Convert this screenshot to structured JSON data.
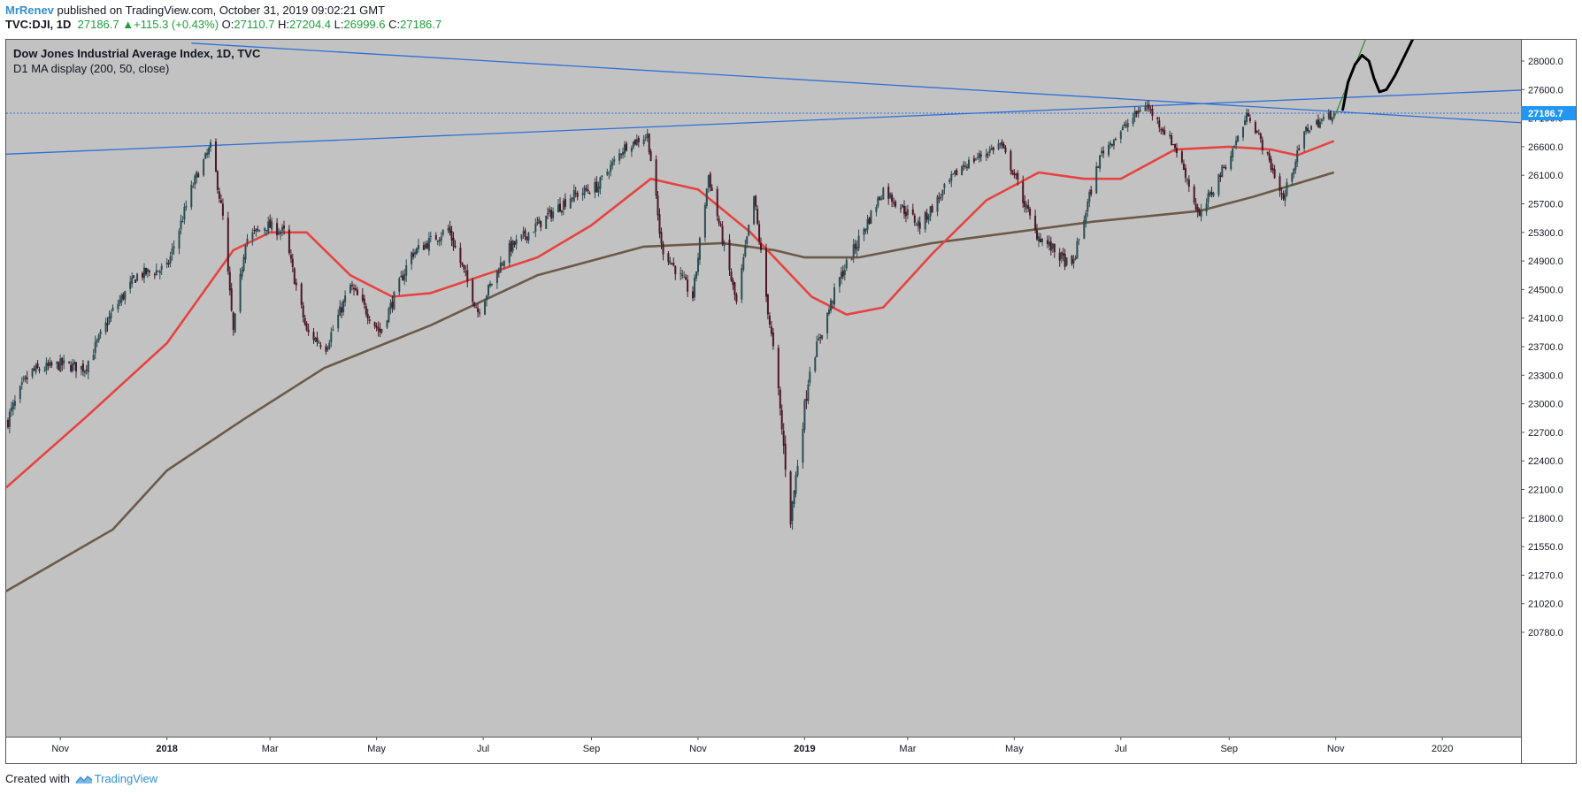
{
  "header": {
    "author": "MrRenev",
    "published_text": "published on TradingView.com, October 31, 2019 09:02:21 GMT",
    "symbol": "TVC:DJI, 1D",
    "last": "27186.7",
    "change_arrow": "▲",
    "change": "+115.3 (+0.43%)",
    "open_label": "O:",
    "open": "27110.7",
    "high_label": "H:",
    "high": "27204.4",
    "low_label": "L:",
    "low": "26999.6",
    "close_label": "C:",
    "close": "27186.7"
  },
  "footer": {
    "created_with": "Created with",
    "brand": "TradingView"
  },
  "colors": {
    "plot_background": "#c2c2c2",
    "candle_up": "#2b4d52",
    "candle_down": "#4a1625",
    "ma50": "#e64340",
    "ma200": "#6b5a48",
    "trendline": "#2f6fd8",
    "price_label_bg": "#2196f3",
    "projection_green": "#3a8a3a",
    "drawing_black": "#000000"
  },
  "chart_data": {
    "type": "candlestick",
    "title": "Dow Jones Industrial Average Index, 1D, TVC",
    "subtitle": "D1 MA display (200, 50, close)",
    "last_price_label": "27186.7",
    "y_ticks": [
      28000.0,
      27600.0,
      27100.0,
      26600.0,
      26100.0,
      25700.0,
      25300.0,
      24900.0,
      24500.0,
      24100.0,
      23700.0,
      23300.0,
      23000.0,
      22700.0,
      22400.0,
      22100.0,
      21800.0,
      21550.0,
      21270.0,
      21020.0,
      20780.0
    ],
    "y_tick_labels": [
      "28000.0",
      "27600.0",
      "27100.0",
      "26600.0",
      "26100.0",
      "25700.0",
      "25300.0",
      "24900.0",
      "24500.0",
      "24100.0",
      "23700.0",
      "23300.0",
      "23000.0",
      "22700.0",
      "22400.0",
      "22100.0",
      "21800.0",
      "21550.0",
      "21270.0",
      "21020.0",
      "20780.0"
    ],
    "x_ticks": [
      {
        "date": "2017-11-01",
        "label": "Nov",
        "bold": false
      },
      {
        "date": "2018-01-01",
        "label": "2018",
        "bold": true
      },
      {
        "date": "2018-03-01",
        "label": "Mar",
        "bold": false
      },
      {
        "date": "2018-05-01",
        "label": "May",
        "bold": false
      },
      {
        "date": "2018-07-01",
        "label": "Jul",
        "bold": false
      },
      {
        "date": "2018-09-01",
        "label": "Sep",
        "bold": false
      },
      {
        "date": "2018-11-01",
        "label": "Nov",
        "bold": false
      },
      {
        "date": "2019-01-01",
        "label": "2019",
        "bold": true
      },
      {
        "date": "2019-03-01",
        "label": "Mar",
        "bold": false
      },
      {
        "date": "2019-05-01",
        "label": "May",
        "bold": false
      },
      {
        "date": "2019-07-01",
        "label": "Jul",
        "bold": false
      },
      {
        "date": "2019-09-01",
        "label": "Sep",
        "bold": false
      },
      {
        "date": "2019-11-01",
        "label": "Nov",
        "bold": false
      },
      {
        "date": "2020-01-01",
        "label": "2020",
        "bold": false
      }
    ],
    "x_range": [
      "2017-10-01",
      "2020-02-15"
    ],
    "price_path": [
      [
        "2017-10-01",
        22800
      ],
      [
        "2017-10-15",
        23350
      ],
      [
        "2017-11-01",
        23450
      ],
      [
        "2017-11-15",
        23400
      ],
      [
        "2017-12-01",
        24200
      ],
      [
        "2017-12-15",
        24700
      ],
      [
        "2018-01-01",
        24800
      ],
      [
        "2018-01-15",
        25900
      ],
      [
        "2018-01-26",
        26600
      ],
      [
        "2018-02-02",
        25500
      ],
      [
        "2018-02-08",
        23900
      ],
      [
        "2018-02-15",
        25200
      ],
      [
        "2018-02-27",
        25400
      ],
      [
        "2018-03-09",
        25300
      ],
      [
        "2018-03-22",
        23900
      ],
      [
        "2018-04-02",
        23700
      ],
      [
        "2018-04-16",
        24550
      ],
      [
        "2018-05-03",
        23900
      ],
      [
        "2018-05-21",
        25000
      ],
      [
        "2018-06-11",
        25350
      ],
      [
        "2018-06-28",
        24200
      ],
      [
        "2018-07-15",
        25050
      ],
      [
        "2018-08-01",
        25400
      ],
      [
        "2018-08-20",
        25800
      ],
      [
        "2018-09-05",
        25950
      ],
      [
        "2018-09-20",
        26600
      ],
      [
        "2018-10-03",
        26800
      ],
      [
        "2018-10-11",
        25100
      ],
      [
        "2018-10-29",
        24400
      ],
      [
        "2018-11-07",
        26100
      ],
      [
        "2018-11-23",
        24300
      ],
      [
        "2018-12-03",
        25800
      ],
      [
        "2018-12-10",
        24400
      ],
      [
        "2018-12-24",
        21800
      ],
      [
        "2019-01-04",
        23400
      ],
      [
        "2019-01-20",
        24600
      ],
      [
        "2019-02-15",
        25900
      ],
      [
        "2019-03-08",
        25400
      ],
      [
        "2019-04-01",
        26250
      ],
      [
        "2019-04-23",
        26650
      ],
      [
        "2019-05-13",
        25300
      ],
      [
        "2019-06-03",
        24800
      ],
      [
        "2019-06-20",
        26500
      ],
      [
        "2019-07-15",
        27350
      ],
      [
        "2019-08-01",
        26600
      ],
      [
        "2019-08-15",
        25500
      ],
      [
        "2019-09-01",
        26400
      ],
      [
        "2019-09-12",
        27200
      ],
      [
        "2019-10-02",
        25750
      ],
      [
        "2019-10-15",
        26900
      ],
      [
        "2019-10-31",
        27186.7
      ]
    ],
    "ma50": [
      [
        "2017-10-01",
        22120
      ],
      [
        "2017-11-15",
        22850
      ],
      [
        "2018-01-01",
        23750
      ],
      [
        "2018-02-08",
        25050
      ],
      [
        "2018-03-01",
        25300
      ],
      [
        "2018-03-22",
        25300
      ],
      [
        "2018-04-16",
        24700
      ],
      [
        "2018-05-10",
        24400
      ],
      [
        "2018-06-01",
        24450
      ],
      [
        "2018-07-01",
        24700
      ],
      [
        "2018-08-01",
        24950
      ],
      [
        "2018-09-01",
        25400
      ],
      [
        "2018-10-05",
        26050
      ],
      [
        "2018-11-01",
        25900
      ],
      [
        "2018-12-01",
        25300
      ],
      [
        "2019-01-05",
        24400
      ],
      [
        "2019-01-25",
        24150
      ],
      [
        "2019-02-15",
        24250
      ],
      [
        "2019-03-15",
        25000
      ],
      [
        "2019-04-15",
        25750
      ],
      [
        "2019-05-15",
        26150
      ],
      [
        "2019-06-10",
        26050
      ],
      [
        "2019-07-01",
        26050
      ],
      [
        "2019-08-01",
        26550
      ],
      [
        "2019-09-01",
        26600
      ],
      [
        "2019-09-25",
        26550
      ],
      [
        "2019-10-10",
        26450
      ],
      [
        "2019-10-31",
        26700
      ]
    ],
    "ma200": [
      [
        "2017-10-01",
        21130
      ],
      [
        "2017-12-01",
        21700
      ],
      [
        "2018-01-01",
        22300
      ],
      [
        "2018-02-15",
        22850
      ],
      [
        "2018-04-01",
        23400
      ],
      [
        "2018-06-01",
        24000
      ],
      [
        "2018-08-01",
        24700
      ],
      [
        "2018-10-01",
        25100
      ],
      [
        "2018-11-15",
        25150
      ],
      [
        "2018-12-15",
        25050
      ],
      [
        "2019-01-01",
        24950
      ],
      [
        "2019-02-01",
        24950
      ],
      [
        "2019-03-15",
        25150
      ],
      [
        "2019-04-15",
        25250
      ],
      [
        "2019-06-15",
        25450
      ],
      [
        "2019-08-15",
        25600
      ],
      [
        "2019-09-15",
        25800
      ],
      [
        "2019-10-31",
        26150
      ]
    ],
    "trendlines": [
      {
        "name": "rising resistance",
        "from": [
          "2017-10-01",
          26470
        ],
        "to": [
          "2020-02-15",
          27590
        ]
      },
      {
        "name": "falling resistance",
        "from": [
          "2018-01-15",
          28250
        ],
        "to": [
          "2020-02-15",
          27020
        ]
      }
    ],
    "last_price_line": 27186.7,
    "projection_green": {
      "from": [
        "2019-10-31",
        27100
      ],
      "to": [
        "2019-11-18",
        28300
      ]
    },
    "projection_drawing": [
      [
        "2019-11-05",
        27250
      ],
      [
        "2019-11-08",
        27700
      ],
      [
        "2019-11-12",
        27950
      ],
      [
        "2019-11-16",
        28080
      ],
      [
        "2019-11-20",
        28000
      ],
      [
        "2019-11-23",
        27750
      ],
      [
        "2019-11-26",
        27560
      ],
      [
        "2019-11-30",
        27600
      ],
      [
        "2019-12-05",
        27800
      ],
      [
        "2019-12-12",
        28150
      ],
      [
        "2019-12-16",
        28350
      ]
    ]
  }
}
